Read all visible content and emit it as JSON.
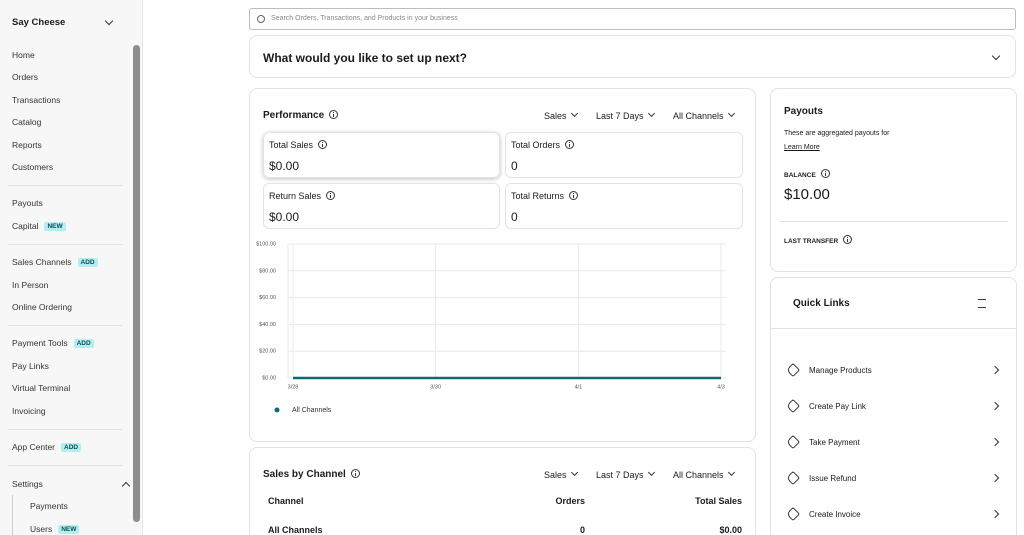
{
  "sidebar": {
    "store": "Say Cheese",
    "items": [
      {
        "label": "Home"
      },
      {
        "label": "Orders"
      },
      {
        "label": "Transactions"
      },
      {
        "label": "Catalog"
      },
      {
        "label": "Reports"
      },
      {
        "label": "Customers"
      },
      {
        "label": "Payouts"
      },
      {
        "label": "Capital",
        "badge": "NEW"
      },
      {
        "label": "Sales Channels",
        "badge": "ADD"
      },
      {
        "label": "In Person"
      },
      {
        "label": "Online Ordering"
      },
      {
        "label": "Payment Tools",
        "badge": "ADD"
      },
      {
        "label": "Pay Links"
      },
      {
        "label": "Virtual Terminal"
      },
      {
        "label": "Invoicing"
      },
      {
        "label": "App Center",
        "badge": "ADD"
      },
      {
        "label": "Settings"
      },
      {
        "label": "Payments"
      },
      {
        "label": "Users",
        "badge": "NEW"
      }
    ]
  },
  "search": {
    "placeholder": "Search Orders, Transactions, and Products in your business"
  },
  "setup": {
    "title": "What would you like to set up next?"
  },
  "performance": {
    "title": "Performance",
    "filters": [
      "Sales",
      "Last 7 Days",
      "All Channels"
    ],
    "metrics": [
      {
        "label": "Total Sales",
        "value": "$0.00"
      },
      {
        "label": "Total Orders",
        "value": 0
      },
      {
        "label": "Return Sales",
        "value": "$0.00"
      },
      {
        "label": "Total Returns",
        "value": 0
      }
    ],
    "chart": {
      "type": "line",
      "categories": [
        "3/28",
        null,
        "3/30",
        null,
        "4/1",
        null,
        "4/3"
      ],
      "ylim": [
        0,
        100
      ],
      "yticks": [
        {
          "value": 0,
          "label": "$0.00"
        },
        {
          "value": 20,
          "label": "$20.00"
        },
        {
          "value": 40,
          "label": "$40.00"
        },
        {
          "value": 60,
          "label": "$60.00"
        },
        {
          "value": 80,
          "label": "$80.00"
        },
        {
          "value": 100,
          "label": "$100.00"
        }
      ],
      "grid": true,
      "series": [
        {
          "name": "All Channels",
          "color": "#0e6b74",
          "values": [
            0,
            0,
            0,
            0,
            0,
            0,
            0
          ]
        }
      ]
    }
  },
  "sales_by_channel": {
    "title": "Sales by Channel",
    "filters": [
      "Sales",
      "Last 7 Days",
      "All Channels"
    ],
    "columns": [
      "Channel",
      "Orders",
      "Total Sales"
    ],
    "rows": [
      [
        "All Channels",
        0,
        "$0.00"
      ]
    ]
  },
  "payouts": {
    "title": "Payouts",
    "description": "These are aggregated payouts for",
    "link": "Learn More",
    "balance_label": "BALANCE",
    "balance": "$10.00",
    "last_transfer_label": "LAST TRANSFER"
  },
  "quick_links": {
    "title": "Quick Links",
    "items": [
      "Manage Products",
      "Create Pay Link",
      "Take Payment",
      "Issue Refund",
      "Create Invoice"
    ]
  }
}
